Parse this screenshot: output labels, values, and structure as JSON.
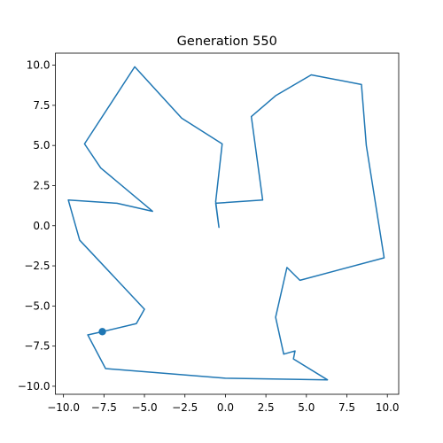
{
  "chart_data": {
    "type": "line",
    "title": "Generation 550",
    "xlabel": "",
    "ylabel": "",
    "xlim": [
      -10.5,
      10.7
    ],
    "ylim": [
      -10.5,
      10.75
    ],
    "x_ticks": [
      -10.0,
      -7.5,
      -5.0,
      -2.5,
      0.0,
      2.5,
      5.0,
      7.5,
      10.0
    ],
    "x_tick_labels": [
      "−10.0",
      "−7.5",
      "−5.0",
      "−2.5",
      "0.0",
      "2.5",
      "5.0",
      "7.5",
      "10.0"
    ],
    "y_ticks": [
      -10.0,
      -7.5,
      -5.0,
      -2.5,
      0.0,
      2.5,
      5.0,
      7.5,
      10.0
    ],
    "y_tick_labels": [
      "−10.0",
      "−7.5",
      "−5.0",
      "−2.5",
      "0.0",
      "2.5",
      "5.0",
      "7.5",
      "10.0"
    ],
    "grid": false,
    "legend": false,
    "series": [
      {
        "color": "#1f77b4",
        "points": [
          [
            -7.6,
            -6.6
          ],
          [
            -5.5,
            -6.1
          ],
          [
            -5.0,
            -5.2
          ],
          [
            -9.0,
            -0.9
          ],
          [
            -9.7,
            1.6
          ],
          [
            -6.7,
            1.4
          ],
          [
            -4.5,
            0.9
          ],
          [
            -7.7,
            3.6
          ],
          [
            -8.7,
            5.1
          ],
          [
            -5.6,
            9.9
          ],
          [
            -2.7,
            6.7
          ],
          [
            -0.2,
            5.1
          ],
          [
            -0.6,
            1.5
          ],
          [
            -0.4,
            -0.1
          ],
          [
            -0.6,
            1.4
          ],
          [
            2.3,
            1.6
          ],
          [
            1.6,
            6.8
          ],
          [
            3.1,
            8.1
          ],
          [
            5.3,
            9.4
          ],
          [
            8.4,
            8.8
          ],
          [
            8.7,
            5.0
          ],
          [
            9.8,
            -2.0
          ],
          [
            4.6,
            -3.4
          ],
          [
            3.8,
            -2.6
          ],
          [
            3.1,
            -5.7
          ],
          [
            3.6,
            -8.0
          ],
          [
            4.3,
            -7.8
          ],
          [
            4.2,
            -8.3
          ],
          [
            6.3,
            -9.6
          ],
          [
            0.0,
            -9.5
          ],
          [
            -7.4,
            -8.9
          ],
          [
            -8.5,
            -6.8
          ],
          [
            -7.6,
            -6.6
          ]
        ],
        "start_marker": [
          -7.6,
          -6.6
        ]
      }
    ]
  }
}
